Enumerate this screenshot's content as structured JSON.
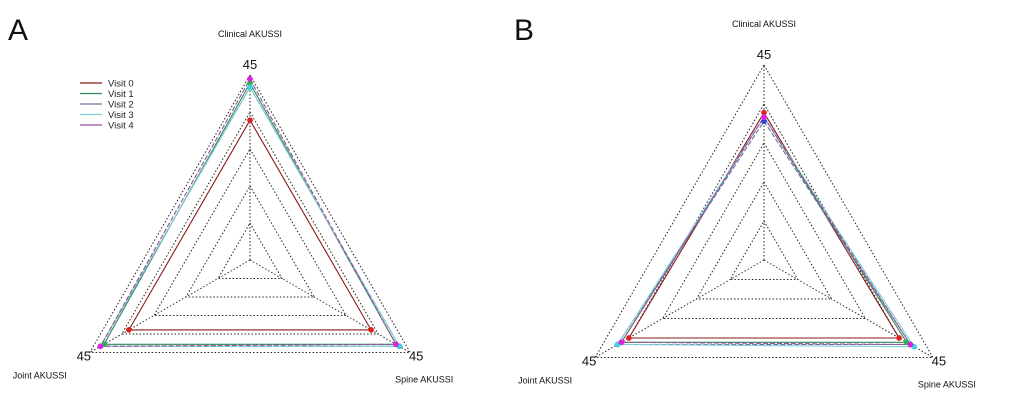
{
  "chart_data": [
    {
      "type": "radar",
      "panel_label": "A",
      "axes": [
        "Clinical AKUSSI",
        "Spine AKUSSI",
        "Joint AKUSSI"
      ],
      "axis_max_label": "45",
      "range": [
        0,
        45
      ],
      "rings": 5,
      "grid": true,
      "legend_position": "top-left",
      "legend": [
        "Visit 0",
        "Visit 1",
        "Visit 2",
        "Visit 3",
        "Visit 4"
      ],
      "series": [
        {
          "name": "Visit 0",
          "values": [
            34,
            34,
            34
          ],
          "color": "#8b1a1a",
          "marker_color": "#e0201b"
        },
        {
          "name": "Visit 1",
          "values": [
            43,
            41,
            41
          ],
          "color": "#2e8b57",
          "marker_color": "#2db34a"
        },
        {
          "name": "Visit 2",
          "values": [
            42,
            42,
            42
          ],
          "color": "#6a6fa8",
          "marker_color": "#3a3fd0"
        },
        {
          "name": "Visit 3",
          "values": [
            42,
            42,
            42
          ],
          "color": "#7fd0d8",
          "marker_color": "#37d7e0"
        },
        {
          "name": "Visit 4",
          "values": [
            44,
            41,
            42
          ],
          "color": "#9b4f9b",
          "marker_color": "#e020e0"
        }
      ]
    },
    {
      "type": "radar",
      "panel_label": "B",
      "axes": [
        "Clinical AKUSSI",
        "Spine AKUSSI",
        "Joint AKUSSI"
      ],
      "axis_max_label": "45",
      "range": [
        0,
        45
      ],
      "rings": 5,
      "grid": true,
      "legend": [],
      "series": [
        {
          "name": "Visit 0",
          "values": [
            34,
            36,
            36
          ],
          "color": "#8b1a1a",
          "marker_color": "#e0201b"
        },
        {
          "name": "Visit 1",
          "values": [
            33,
            38,
            38
          ],
          "color": "#2e8b57",
          "marker_color": "#2db34a"
        },
        {
          "name": "Visit 2",
          "values": [
            32,
            39,
            39
          ],
          "color": "#6a6fa8",
          "marker_color": "#3a3fd0"
        },
        {
          "name": "Visit 3",
          "values": [
            33,
            40,
            39
          ],
          "color": "#7fd0d8",
          "marker_color": "#37d7e0"
        },
        {
          "name": "Visit 4",
          "values": [
            33,
            39,
            38
          ],
          "color": "#9b4f9b",
          "marker_color": "#e020e0"
        }
      ]
    }
  ]
}
